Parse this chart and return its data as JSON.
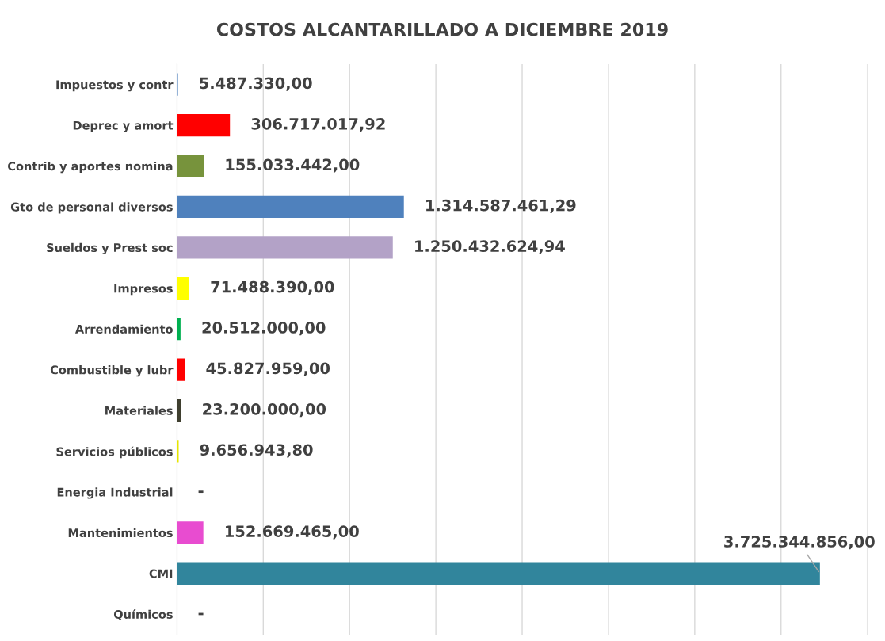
{
  "chart_data": {
    "type": "bar",
    "orientation": "horizontal",
    "title": "COSTOS ALCANTARILLADO A DICIEMBRE 2019",
    "categories": [
      "Impuestos y contr",
      "Deprec y amort",
      "Contrib y aportes nomina",
      "Gto de personal diversos",
      "Sueldos y Prest soc",
      "Impresos",
      "Arrendamiento",
      "Combustible y lubr",
      "Materiales",
      "Servicios públicos",
      "Energia Industrial",
      "Mantenimientos",
      "CMI",
      "Químicos"
    ],
    "values": [
      5487330.0,
      306717017.92,
      155033442.0,
      1314587461.29,
      1250432624.94,
      71488390.0,
      20512000.0,
      45827959.0,
      23200000.0,
      9656943.8,
      0,
      152669465.0,
      3725344856.0,
      0
    ],
    "value_labels": [
      "5.487.330,00",
      "306.717.017,92",
      "155.033.442,00",
      "1.314.587.461,29",
      "1.250.432.624,94",
      "71.488.390,00",
      "20.512.000,00",
      "45.827.959,00",
      "23.200.000,00",
      "9.656.943,80",
      "-",
      "152.669.465,00",
      "3.725.344.856,00",
      "-"
    ],
    "colors": [
      "#4f81bd",
      "#ff0000",
      "#77933c",
      "#4f81bd",
      "#b3a2c7",
      "#ffff00",
      "#00b050",
      "#ff0000",
      "#3f3f2f",
      "#e6e600",
      "#4f81bd",
      "#e84cd0",
      "#31859c",
      "#4f81bd"
    ],
    "xlim": [
      0,
      4000000000
    ],
    "xticks": [
      {
        "value": 0,
        "label": null
      },
      {
        "value": 500000000,
        "label": null
      },
      {
        "value": 1000000000,
        "label": null
      },
      {
        "value": 1500000000,
        "label": null
      },
      {
        "value": 2000000000,
        "label": null
      },
      {
        "value": 2500000000,
        "label": null
      },
      {
        "value": 3000000000,
        "label": null
      },
      {
        "value": 3500000000,
        "label": null
      },
      {
        "value": 4000000000,
        "label": null
      }
    ],
    "grid": "x",
    "tick_labels": "y",
    "legend": false
  }
}
